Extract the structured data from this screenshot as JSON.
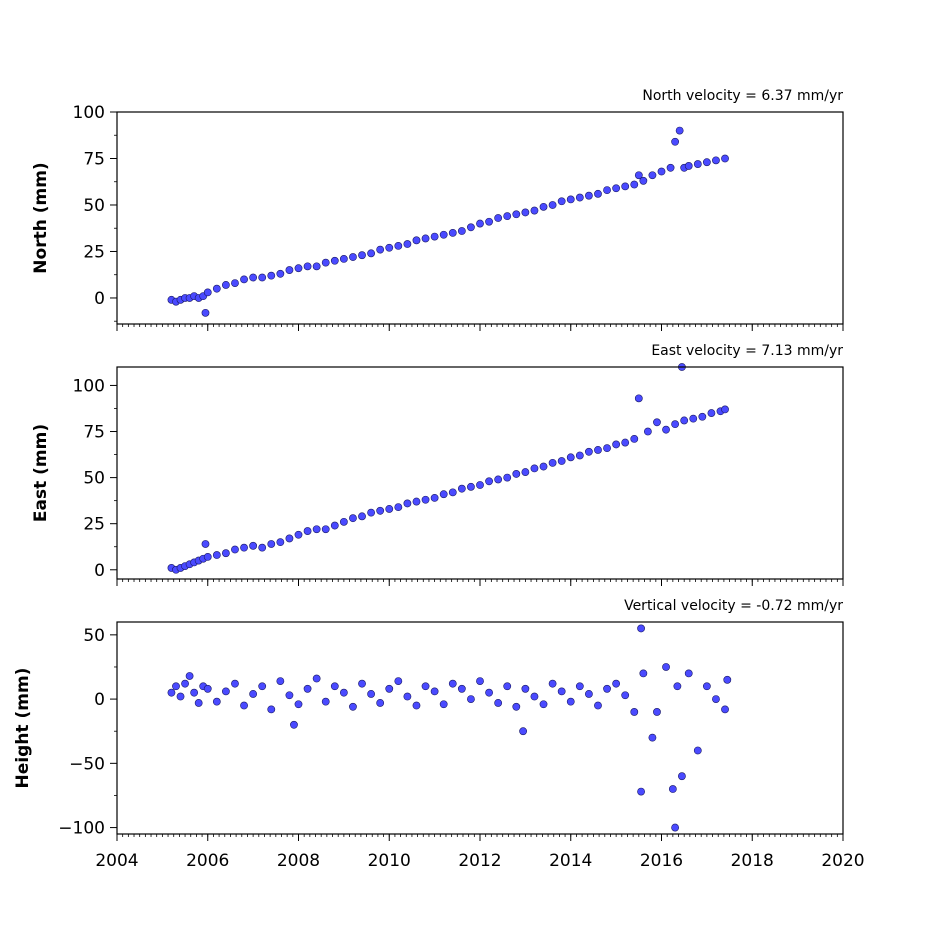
{
  "colors": {
    "marker_fill": "#4a4aff",
    "marker_edge": "#1a1a66",
    "axes": "#000000",
    "background": "#ffffff"
  },
  "chart_data": [
    {
      "type": "scatter",
      "title": "North velocity = 6.37 mm/yr",
      "xlabel": "",
      "ylabel": "North (mm)",
      "xlim": [
        2004,
        2020
      ],
      "ylim": [
        -14,
        100
      ],
      "xticks": [
        2004,
        2006,
        2008,
        2010,
        2012,
        2014,
        2016,
        2018,
        2020
      ],
      "xtick_labels_shown": false,
      "yticks": [
        0,
        25,
        50,
        75,
        100
      ],
      "velocity_mm_per_yr": 6.37,
      "series": [
        {
          "x": [
            2005.2,
            2005.3,
            2005.4,
            2005.5,
            2005.6,
            2005.7,
            2005.8,
            2005.9,
            2006.0,
            2006.2,
            2006.4,
            2006.6,
            2006.8,
            2007.0,
            2007.2,
            2007.4,
            2007.6,
            2007.8,
            2008.0,
            2008.2,
            2008.4,
            2008.6,
            2008.8,
            2009.0,
            2009.2,
            2009.4,
            2009.6,
            2009.8,
            2010.0,
            2010.2,
            2010.4,
            2010.6,
            2010.8,
            2011.0,
            2011.2,
            2011.4,
            2011.6,
            2011.8,
            2012.0,
            2012.2,
            2012.4,
            2012.6,
            2012.8,
            2013.0,
            2013.2,
            2013.4,
            2013.6,
            2013.8,
            2014.0,
            2014.2,
            2014.4,
            2014.6,
            2014.8,
            2015.0,
            2015.2,
            2015.4,
            2015.5,
            2015.6,
            2015.8,
            2016.0,
            2016.2,
            2016.3,
            2016.4,
            2016.5,
            2016.6,
            2016.8,
            2017.0,
            2017.2,
            2017.4,
            2005.95
          ],
          "y": [
            -1,
            -2,
            -1,
            0,
            0,
            1,
            0,
            1,
            3,
            5,
            7,
            8,
            10,
            11,
            11,
            12,
            13,
            15,
            16,
            17,
            17,
            19,
            20,
            21,
            22,
            23,
            24,
            26,
            27,
            28,
            29,
            31,
            32,
            33,
            34,
            35,
            36,
            38,
            40,
            41,
            43,
            44,
            45,
            46,
            47,
            49,
            50,
            52,
            53,
            54,
            55,
            56,
            58,
            59,
            60,
            61,
            66,
            63,
            66,
            68,
            70,
            84,
            90,
            70,
            71,
            72,
            73,
            74,
            75,
            -8
          ]
        }
      ]
    },
    {
      "type": "scatter",
      "title": "East velocity = 7.13 mm/yr",
      "xlabel": "",
      "ylabel": "East (mm)",
      "xlim": [
        2004,
        2020
      ],
      "ylim": [
        -5,
        110
      ],
      "xticks": [
        2004,
        2006,
        2008,
        2010,
        2012,
        2014,
        2016,
        2018,
        2020
      ],
      "xtick_labels_shown": false,
      "yticks": [
        0,
        25,
        50,
        75,
        100
      ],
      "velocity_mm_per_yr": 7.13,
      "series": [
        {
          "x": [
            2005.2,
            2005.3,
            2005.4,
            2005.5,
            2005.6,
            2005.7,
            2005.8,
            2005.9,
            2006.0,
            2006.2,
            2006.4,
            2006.6,
            2006.8,
            2007.0,
            2007.2,
            2007.4,
            2007.6,
            2007.8,
            2008.0,
            2008.2,
            2008.4,
            2008.6,
            2008.8,
            2009.0,
            2009.2,
            2009.4,
            2009.6,
            2009.8,
            2010.0,
            2010.2,
            2010.4,
            2010.6,
            2010.8,
            2011.0,
            2011.2,
            2011.4,
            2011.6,
            2011.8,
            2012.0,
            2012.2,
            2012.4,
            2012.6,
            2012.8,
            2013.0,
            2013.2,
            2013.4,
            2013.6,
            2013.8,
            2014.0,
            2014.2,
            2014.4,
            2014.6,
            2014.8,
            2015.0,
            2015.2,
            2015.4,
            2015.5,
            2015.7,
            2015.9,
            2016.1,
            2016.3,
            2016.5,
            2016.7,
            2016.9,
            2017.1,
            2017.3,
            2017.4,
            2005.95,
            2016.45
          ],
          "y": [
            1,
            0,
            1,
            2,
            3,
            4,
            5,
            6,
            7,
            8,
            9,
            11,
            12,
            13,
            12,
            14,
            15,
            17,
            19,
            21,
            22,
            22,
            24,
            26,
            28,
            29,
            31,
            32,
            33,
            34,
            36,
            37,
            38,
            39,
            41,
            42,
            44,
            45,
            46,
            48,
            49,
            50,
            52,
            53,
            55,
            56,
            58,
            59,
            61,
            62,
            64,
            65,
            66,
            68,
            69,
            71,
            93,
            75,
            80,
            76,
            79,
            81,
            82,
            83,
            85,
            86,
            87,
            14,
            110
          ]
        }
      ]
    },
    {
      "type": "scatter",
      "title": "Vertical velocity = -0.72 mm/yr",
      "xlabel": "",
      "ylabel": "Height (mm)",
      "xlim": [
        2004,
        2020
      ],
      "ylim": [
        -105,
        60
      ],
      "xticks": [
        2004,
        2006,
        2008,
        2010,
        2012,
        2014,
        2016,
        2018,
        2020
      ],
      "xtick_labels": [
        "2004",
        "2006",
        "2008",
        "2010",
        "2012",
        "2014",
        "2016",
        "2018",
        "2020"
      ],
      "yticks": [
        -100,
        -50,
        0,
        50
      ],
      "velocity_mm_per_yr": -0.72,
      "series": [
        {
          "x": [
            2005.2,
            2005.3,
            2005.4,
            2005.5,
            2005.6,
            2005.7,
            2005.8,
            2005.9,
            2006.0,
            2006.2,
            2006.4,
            2006.6,
            2006.8,
            2007.0,
            2007.2,
            2007.4,
            2007.6,
            2007.8,
            2008.0,
            2008.2,
            2008.4,
            2008.6,
            2008.8,
            2009.0,
            2009.2,
            2009.4,
            2009.6,
            2009.8,
            2010.0,
            2010.2,
            2010.4,
            2010.6,
            2010.8,
            2011.0,
            2011.2,
            2011.4,
            2011.6,
            2011.8,
            2012.0,
            2012.2,
            2012.4,
            2012.6,
            2012.8,
            2013.0,
            2013.2,
            2013.4,
            2013.6,
            2013.8,
            2014.0,
            2014.2,
            2014.4,
            2014.6,
            2014.8,
            2015.0,
            2015.2,
            2015.4,
            2015.55,
            2015.55,
            2015.6,
            2015.8,
            2015.9,
            2016.1,
            2016.25,
            2016.3,
            2016.35,
            2016.45,
            2016.6,
            2016.8,
            2017.0,
            2017.2,
            2017.4,
            2017.45,
            2007.9,
            2012.95
          ],
          "y": [
            5,
            10,
            2,
            12,
            18,
            5,
            -3,
            10,
            8,
            -2,
            6,
            12,
            -5,
            4,
            10,
            -8,
            14,
            3,
            -4,
            8,
            16,
            -2,
            10,
            5,
            -6,
            12,
            4,
            -3,
            8,
            14,
            2,
            -5,
            10,
            6,
            -4,
            12,
            8,
            0,
            14,
            5,
            -3,
            10,
            -6,
            8,
            2,
            -4,
            12,
            6,
            -2,
            10,
            4,
            -5,
            8,
            12,
            3,
            -10,
            55,
            -72,
            20,
            -30,
            -10,
            25,
            -70,
            -100,
            10,
            -60,
            20,
            -40,
            10,
            0,
            -8,
            15,
            -20,
            -25
          ]
        }
      ]
    }
  ]
}
